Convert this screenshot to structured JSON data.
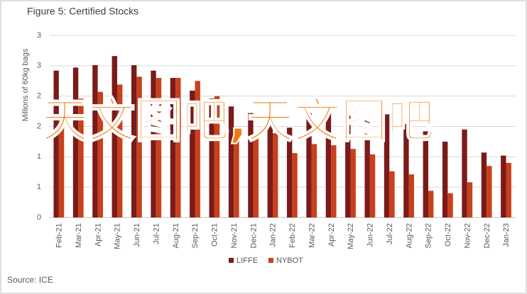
{
  "chart_data": {
    "type": "bar",
    "title": "Figure 5: Certified Stocks",
    "ylabel": "Millions of 60kg bags",
    "source": "Source: ICE",
    "watermark": "天文图吧,天文图吧",
    "categories": [
      "Feb-21",
      "Mar-21",
      "Apr-21",
      "May-21",
      "Jun-21",
      "Jul-21",
      "Aug-21",
      "Sep-21",
      "Oct-21",
      "Nov-21",
      "Dec-21",
      "Jan-22",
      "Feb-22",
      "Mar-22",
      "Apr-22",
      "May-22",
      "Jun-22",
      "Jul-22",
      "Aug-22",
      "Sep-22",
      "Oct-22",
      "Nov-22",
      "Dec-22",
      "Jan-23"
    ],
    "series": [
      {
        "name": "LIFFE",
        "color": "#7b1a1a",
        "values": [
          2.42,
          2.47,
          2.51,
          2.66,
          2.51,
          2.42,
          2.3,
          2.09,
          1.96,
          1.83,
          1.72,
          1.58,
          1.48,
          1.72,
          1.72,
          1.7,
          1.72,
          1.7,
          1.54,
          1.42,
          1.25,
          1.45,
          1.07,
          1.02
        ]
      },
      {
        "name": "NYBOT",
        "color": "#c9401c",
        "values": [
          1.6,
          1.96,
          2.07,
          2.19,
          2.32,
          2.3,
          2.3,
          2.25,
          2.0,
          1.48,
          1.37,
          1.39,
          1.06,
          1.21,
          1.19,
          1.13,
          1.04,
          0.76,
          0.71,
          0.44,
          0.4,
          0.58,
          0.85,
          0.9
        ]
      }
    ],
    "ylim": [
      0,
      3
    ],
    "yticks": [
      0,
      {
        "value": 0.5,
        "label": "1"
      },
      1,
      {
        "value": 1.5,
        "label": "2"
      },
      2,
      {
        "value": 2.5,
        "label": "3"
      },
      3
    ],
    "grid": true,
    "legend": "bottom"
  }
}
